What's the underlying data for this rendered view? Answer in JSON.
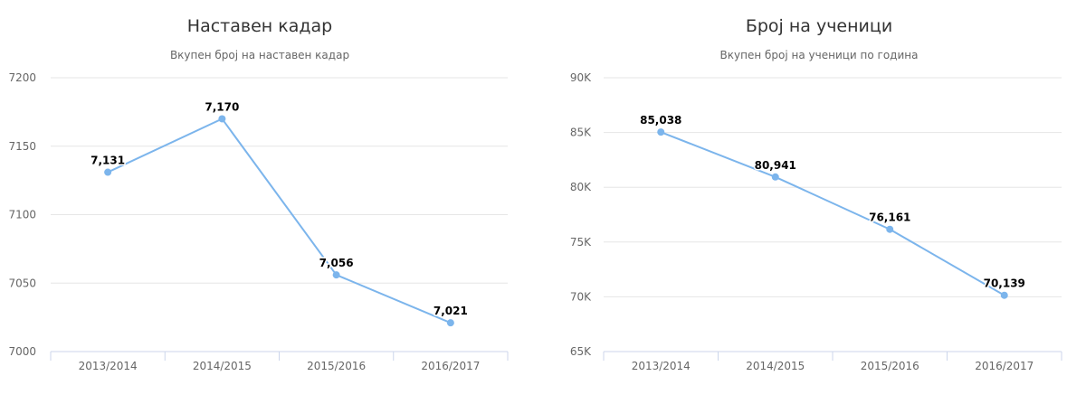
{
  "colors": {
    "series": "#7cb5ec"
  },
  "chart_data": [
    {
      "type": "line",
      "title": "Наставен кадар",
      "subtitle": "Вкупен број на наставен кадар",
      "categories": [
        "2013/2014",
        "2014/2015",
        "2015/2016",
        "2016/2017"
      ],
      "values": [
        7131,
        7170,
        7056,
        7021
      ],
      "value_labels": [
        "7,131",
        "7,170",
        "7,056",
        "7,021"
      ],
      "ylim": [
        7000,
        7200
      ],
      "yticks": [
        7000,
        7050,
        7100,
        7150,
        7200
      ],
      "ytick_labels": [
        "7000",
        "7050",
        "7100",
        "7150",
        "7200"
      ],
      "grid": true,
      "legend": "none"
    },
    {
      "type": "line",
      "title": "Број на ученици",
      "subtitle": "Вкупен број на ученици по година",
      "categories": [
        "2013/2014",
        "2014/2015",
        "2015/2016",
        "2016/2017"
      ],
      "values": [
        85038,
        80941,
        76161,
        70139
      ],
      "value_labels": [
        "85,038",
        "80,941",
        "76,161",
        "70,139"
      ],
      "ylim": [
        65000,
        90000
      ],
      "yticks": [
        65000,
        70000,
        75000,
        80000,
        85000,
        90000
      ],
      "ytick_labels": [
        "65K",
        "70K",
        "75K",
        "80K",
        "85K",
        "90K"
      ],
      "grid": true,
      "legend": "none"
    }
  ]
}
